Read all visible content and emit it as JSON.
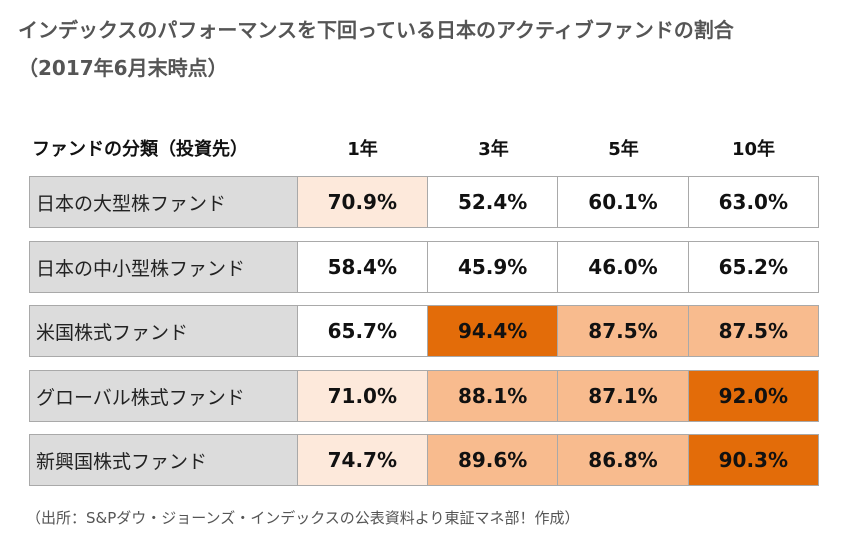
{
  "title": "インデックスのパフォーマンスを下回っている日本のアクティブファンドの割合",
  "subtitle": "（2017年6月末時点）",
  "source": "（出所：S&Pダウ・ジョーンズ・インデックスの公表資料より東証マネ部！作成）",
  "colors": {
    "white": "#ffffff",
    "pale": "#fde9db",
    "light": "#f8bb8e",
    "dark": "#e36c09",
    "label_bg": "#dcdcdc"
  },
  "chart_data": {
    "type": "table",
    "columns": [
      "ファンドの分類（投資先）",
      "1年",
      "3年",
      "5年",
      "10年"
    ],
    "rows": [
      {
        "label": "日本の大型株ファンド",
        "values": [
          "70.9%",
          "52.4%",
          "60.1%",
          "63.0%"
        ],
        "shade": [
          "pale",
          "white",
          "white",
          "white"
        ]
      },
      {
        "label": "日本の中小型株ファンド",
        "values": [
          "58.4%",
          "45.9%",
          "46.0%",
          "65.2%"
        ],
        "shade": [
          "white",
          "white",
          "white",
          "white"
        ]
      },
      {
        "label": "米国株式ファンド",
        "values": [
          "65.7%",
          "94.4%",
          "87.5%",
          "87.5%"
        ],
        "shade": [
          "white",
          "dark",
          "light",
          "light"
        ]
      },
      {
        "label": "グローバル株式ファンド",
        "values": [
          "71.0%",
          "88.1%",
          "87.1%",
          "92.0%"
        ],
        "shade": [
          "pale",
          "light",
          "light",
          "dark"
        ]
      },
      {
        "label": "新興国株式ファンド",
        "values": [
          "74.7%",
          "89.6%",
          "86.8%",
          "90.3%"
        ],
        "shade": [
          "pale",
          "light",
          "light",
          "dark"
        ]
      }
    ]
  }
}
